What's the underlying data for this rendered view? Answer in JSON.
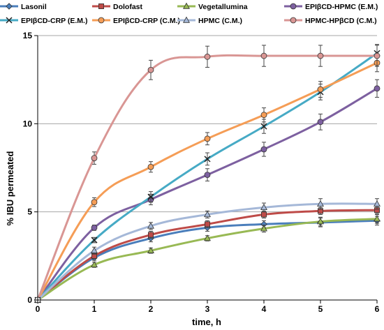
{
  "chart_data": {
    "type": "line",
    "title": "",
    "xlabel": "time, h",
    "ylabel": "% IBU permeated",
    "x": [
      0,
      1,
      2,
      3,
      4,
      5,
      6
    ],
    "xlim": [
      0,
      6
    ],
    "ylim": [
      0,
      15
    ],
    "xticks": [
      "0",
      "1",
      "2",
      "3",
      "4",
      "5",
      "6"
    ],
    "yticks": [
      "0",
      "5",
      "10",
      "15"
    ],
    "grid": "horizontal",
    "legend_position": "top",
    "series": [
      {
        "name": "Lasonil",
        "color": "#4a7ebb",
        "marker": "diamond",
        "values": [
          0,
          2.4,
          3.5,
          4.1,
          4.3,
          4.4,
          4.5
        ],
        "errors": [
          0,
          0.15,
          0.2,
          0.2,
          0.2,
          0.25,
          0.25
        ]
      },
      {
        "name": "Dolofast",
        "color": "#be4b48",
        "marker": "square",
        "values": [
          0,
          2.5,
          3.7,
          4.3,
          4.85,
          5.05,
          5.1
        ],
        "errors": [
          0,
          0.15,
          0.2,
          0.2,
          0.2,
          0.2,
          0.2
        ]
      },
      {
        "name": "Vegetallumina",
        "color": "#98b954",
        "marker": "triangle",
        "values": [
          0,
          2.0,
          2.8,
          3.5,
          4.05,
          4.45,
          4.6
        ],
        "errors": [
          0,
          0.15,
          0.15,
          0.15,
          0.2,
          0.25,
          0.25
        ]
      },
      {
        "name": "EPIβCD-HPMC (E.M.)",
        "color": "#7d60a0",
        "marker": "circle",
        "values": [
          0,
          4.1,
          5.7,
          7.1,
          8.55,
          10.1,
          12.0
        ],
        "errors": [
          0,
          0.15,
          0.3,
          0.35,
          0.4,
          0.45,
          0.5
        ]
      },
      {
        "name": "EPIβCD-CRP (E.M.)",
        "color": "#46aac5",
        "marker": "x",
        "values": [
          0,
          3.4,
          5.85,
          8.0,
          9.85,
          11.8,
          14.0
        ],
        "errors": [
          0,
          0.15,
          0.3,
          0.35,
          0.4,
          0.45,
          0.5
        ]
      },
      {
        "name": "EPIβCD-CRP (C.M.)",
        "color": "#f59d56",
        "marker": "circle",
        "values": [
          0,
          5.55,
          7.55,
          9.15,
          10.5,
          11.95,
          13.45
        ],
        "errors": [
          0,
          0.25,
          0.3,
          0.35,
          0.4,
          0.45,
          0.5
        ]
      },
      {
        "name": "HPMC (C.M.)",
        "color": "#a5b8d8",
        "marker": "triangle",
        "values": [
          0,
          2.8,
          4.2,
          4.85,
          5.25,
          5.45,
          5.45
        ],
        "errors": [
          0,
          0.2,
          0.2,
          0.2,
          0.25,
          0.3,
          0.3
        ]
      },
      {
        "name": "HPMC-HPβCD (C.M.)",
        "color": "#d99694",
        "marker": "circle",
        "values": [
          0,
          8.05,
          13.05,
          13.8,
          13.85,
          13.85,
          13.85
        ],
        "errors": [
          0,
          0.35,
          0.55,
          0.6,
          0.6,
          0.6,
          0.6
        ]
      }
    ]
  }
}
